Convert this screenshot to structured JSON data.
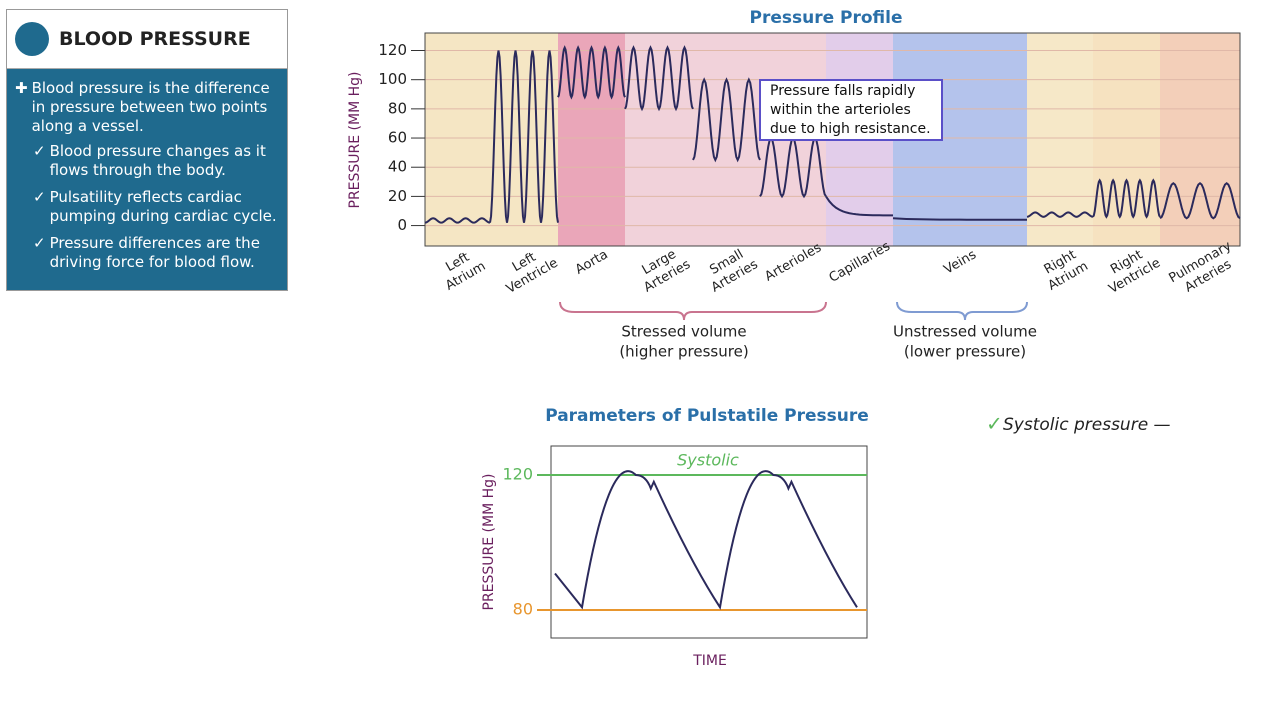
{
  "sidebar": {
    "title": "BLOOD PRESSURE",
    "main_point": "Blood pressure is the difference in pressure between two points along a vessel.",
    "points": [
      "Blood pressure changes as it flows through the body.",
      "Pulsatility reflects cardiac pumping during cardiac cycle.",
      "Pressure differences are the driving force for blood flow."
    ]
  },
  "chart_data": [
    {
      "type": "line",
      "title": "Pressure Profile",
      "y_label": "PRESSURE (MM Hg)",
      "categories": [
        "Left Atrium",
        "Left Ventricle",
        "Aorta",
        "Large Arteries",
        "Small Arteries",
        "Arterioles",
        "Capillaries",
        "Veins",
        "Right Atrium",
        "Right Ventricle",
        "Pulmonary Arteries"
      ],
      "values_high": [
        5,
        120,
        122,
        122,
        100,
        60,
        20,
        5,
        9,
        31,
        29
      ],
      "values_low": [
        2,
        2,
        88,
        80,
        45,
        20,
        7,
        4,
        6,
        6,
        5
      ],
      "band_colors": [
        "#f5e6c4",
        "#f5e6c4",
        "#eaa6b9",
        "#f1d2da",
        "#f1d2da",
        "#f1d2da",
        "#e2cdea",
        "#b4c3ec",
        "#f6e8c8",
        "#f6e2c0",
        "#f3cfb9"
      ],
      "line_color": "#2b2a5c",
      "ylim": [
        -14,
        132
      ],
      "yticks": [
        0,
        20,
        40,
        60,
        80,
        100,
        120
      ],
      "grid": true,
      "annotation": "Pressure falls rapidly within the arterioles due to high resistance.",
      "brackets": [
        {
          "label": "Stressed volume",
          "sublabel": "(higher pressure)",
          "color": "#c9748f"
        },
        {
          "label": "Unstressed volume",
          "sublabel": "(lower pressure)",
          "color": "#7f9bd2"
        }
      ]
    },
    {
      "type": "reference-lines",
      "title": "Parameters of Pulstatile Pressure",
      "y_label": "PRESSURE (MM Hg)",
      "x_label": "TIME",
      "lines": [
        {
          "name": "Systolic",
          "value": 120,
          "color": "#5cb85c"
        },
        {
          "value": 80,
          "color": "#e8962e"
        }
      ],
      "ylim": [
        71.7,
        128.6
      ],
      "yticks": [
        80,
        120
      ],
      "line_color": "#2b2a5c"
    }
  ],
  "note": {
    "text": "Systolic pressure —"
  }
}
